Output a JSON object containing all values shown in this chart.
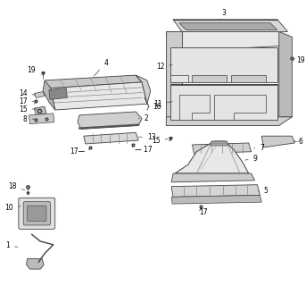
{
  "background_color": "#ffffff",
  "line_color": "#404040",
  "text_color": "#000000",
  "figsize": [
    3.43,
    3.2
  ],
  "dpi": 100,
  "gray_fill": "#d8d8d8",
  "gray_dark": "#909090"
}
